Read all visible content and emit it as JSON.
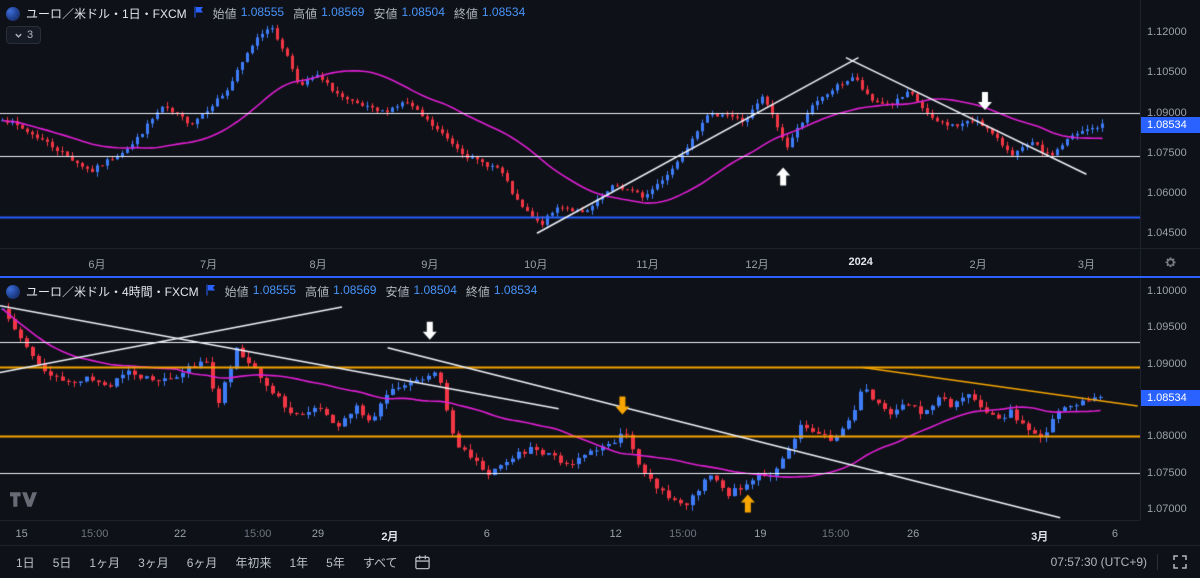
{
  "colors": {
    "background": "#0e1117",
    "up": "#3f7df8",
    "down": "#f23645",
    "ma": "#e01fd5",
    "level_white": "#f0f3fa",
    "level_orange": "#f7a600",
    "level_blue": "#2962ff",
    "separator": "#2962ff",
    "axis_text": "#9aa0aa",
    "tag_bg": "#2962ff",
    "value_blue": "#4894fa"
  },
  "panes_ui": {
    "indicator_count": "3"
  },
  "toolbar": {
    "ranges": [
      "1日",
      "5日",
      "1ヶ月",
      "3ヶ月",
      "6ヶ月",
      "年初来",
      "1年",
      "5年",
      "すべて"
    ],
    "clock": "07:57:30 (UTC+9)"
  },
  "chart_data": [
    {
      "type": "candlestick",
      "symbol": "ユーロ／米ドル・1日・FXCM",
      "timeframe": "1日",
      "exchange": "FXCM",
      "legend": [
        {
          "label": "始値",
          "value": "1.08555"
        },
        {
          "label": "高値",
          "value": "1.08569"
        },
        {
          "label": "安値",
          "value": "1.08504"
        },
        {
          "label": "終値",
          "value": "1.08534"
        }
      ],
      "last_price": "1.08534",
      "y_range": [
        1.0395,
        1.132
      ],
      "y_ticks": [
        1.12,
        1.105,
        1.09,
        1.075,
        1.06,
        1.045
      ],
      "x_ticks": [
        {
          "t": "6月",
          "x": 0.085
        },
        {
          "t": "7月",
          "x": 0.183
        },
        {
          "t": "8月",
          "x": 0.279
        },
        {
          "t": "9月",
          "x": 0.377
        },
        {
          "t": "10月",
          "x": 0.47
        },
        {
          "t": "11月",
          "x": 0.568
        },
        {
          "t": "12月",
          "x": 0.664
        },
        {
          "t": "2024",
          "x": 0.755,
          "s": "major"
        },
        {
          "t": "2月",
          "x": 0.858
        },
        {
          "t": "3月",
          "x": 0.953
        }
      ],
      "bars": 221,
      "bar_spacing": 5,
      "body_width": 3,
      "seed": 7,
      "close_noise": 0.0009,
      "wick_extra": 0.0018,
      "ma_period": 28,
      "close_path": [
        [
          0,
          1.088
        ],
        [
          0.036,
          1.08
        ],
        [
          0.081,
          1.068
        ],
        [
          0.118,
          1.078
        ],
        [
          0.145,
          1.092
        ],
        [
          0.172,
          1.086
        ],
        [
          0.204,
          1.098
        ],
        [
          0.231,
          1.118
        ],
        [
          0.243,
          1.1225
        ],
        [
          0.258,
          1.112
        ],
        [
          0.271,
          1.0995
        ],
        [
          0.285,
          1.104
        ],
        [
          0.312,
          1.0945
        ],
        [
          0.344,
          1.09
        ],
        [
          0.367,
          1.094
        ],
        [
          0.394,
          1.084
        ],
        [
          0.425,
          1.073
        ],
        [
          0.452,
          1.069
        ],
        [
          0.469,
          1.056
        ],
        [
          0.489,
          1.048
        ],
        [
          0.507,
          1.0555
        ],
        [
          0.529,
          1.052
        ],
        [
          0.557,
          1.063
        ],
        [
          0.584,
          1.0585
        ],
        [
          0.611,
          1.07
        ],
        [
          0.638,
          1.088
        ],
        [
          0.656,
          1.09
        ],
        [
          0.674,
          1.0865
        ],
        [
          0.692,
          1.096
        ],
        [
          0.713,
          1.077
        ],
        [
          0.733,
          1.091
        ],
        [
          0.756,
          1.099
        ],
        [
          0.774,
          1.1035
        ],
        [
          0.789,
          1.0945
        ],
        [
          0.808,
          1.093
        ],
        [
          0.825,
          1.0975
        ],
        [
          0.846,
          1.087
        ],
        [
          0.867,
          1.085
        ],
        [
          0.887,
          1.0875
        ],
        [
          0.905,
          1.0795
        ],
        [
          0.919,
          1.0745
        ],
        [
          0.937,
          1.0785
        ],
        [
          0.952,
          1.0735
        ],
        [
          0.97,
          1.0805
        ],
        [
          0.986,
          1.0835
        ],
        [
          1,
          1.0853
        ]
      ],
      "levels": [
        {
          "price": 1.09,
          "color": "#f0f3fa",
          "lw": 1
        },
        {
          "price": 1.074,
          "color": "#f0f3fa",
          "lw": 1
        },
        {
          "price": 1.051,
          "color": "#2962ff",
          "lw": 2
        }
      ],
      "trendlines": [
        {
          "x1": 0.471,
          "p1": 1.045,
          "x2": 0.753,
          "p2": 1.1105,
          "color": "#f0f3fa",
          "lw": 1.5
        },
        {
          "x1": 0.742,
          "p1": 1.1105,
          "x2": 0.953,
          "p2": 1.067,
          "color": "#f0f3fa",
          "lw": 1.5
        }
      ],
      "arrows": [
        {
          "x": 0.687,
          "price": 1.0695,
          "dir": "up",
          "color": "#ffffff"
        },
        {
          "x": 0.864,
          "price": 1.091,
          "dir": "down",
          "color": "#ffffff"
        }
      ]
    },
    {
      "type": "candlestick",
      "symbol": "ユーロ／米ドル・4時間・FXCM",
      "timeframe": "4時間",
      "exchange": "FXCM",
      "legend": [
        {
          "label": "始値",
          "value": "1.08555"
        },
        {
          "label": "高値",
          "value": "1.08569"
        },
        {
          "label": "安値",
          "value": "1.08504"
        },
        {
          "label": "終値",
          "value": "1.08534"
        }
      ],
      "last_price": "1.08534",
      "y_range": [
        1.0685,
        1.1018
      ],
      "y_ticks": [
        1.1,
        1.095,
        1.09,
        1.085,
        1.08,
        1.075,
        1.07
      ],
      "x_ticks": [
        {
          "t": "15",
          "x": 0.019
        },
        {
          "t": "15:00",
          "x": 0.083,
          "s": "minor"
        },
        {
          "t": "22",
          "x": 0.158
        },
        {
          "t": "15:00",
          "x": 0.226,
          "s": "minor"
        },
        {
          "t": "29",
          "x": 0.279
        },
        {
          "t": "2月",
          "x": 0.342,
          "s": "major"
        },
        {
          "t": "6",
          "x": 0.427
        },
        {
          "t": "12",
          "x": 0.54
        },
        {
          "t": "15:00",
          "x": 0.599,
          "s": "minor"
        },
        {
          "t": "19",
          "x": 0.667
        },
        {
          "t": "15:00",
          "x": 0.733,
          "s": "minor"
        },
        {
          "t": "26",
          "x": 0.801
        },
        {
          "t": "3月",
          "x": 0.912,
          "s": "major"
        },
        {
          "t": "6",
          "x": 0.978
        }
      ],
      "bars": 184,
      "bar_spacing": 6,
      "body_width": 4,
      "seed": 13,
      "close_noise": 0.00045,
      "wick_extra": 0.0008,
      "ma_period": 30,
      "close_path": [
        [
          0,
          1.0975
        ],
        [
          0.016,
          1.094
        ],
        [
          0.041,
          1.0885
        ],
        [
          0.059,
          1.0872
        ],
        [
          0.077,
          1.0882
        ],
        [
          0.095,
          1.0868
        ],
        [
          0.113,
          1.089
        ],
        [
          0.136,
          1.0878
        ],
        [
          0.158,
          1.0885
        ],
        [
          0.186,
          1.0905
        ],
        [
          0.195,
          1.084
        ],
        [
          0.213,
          1.0922
        ],
        [
          0.231,
          1.0892
        ],
        [
          0.249,
          1.0855
        ],
        [
          0.267,
          1.0828
        ],
        [
          0.285,
          1.0842
        ],
        [
          0.303,
          1.0812
        ],
        [
          0.321,
          1.0842
        ],
        [
          0.335,
          1.0822
        ],
        [
          0.348,
          1.0852
        ],
        [
          0.362,
          1.087
        ],
        [
          0.38,
          1.0875
        ],
        [
          0.396,
          1.0888
        ],
        [
          0.412,
          1.0788
        ],
        [
          0.427,
          1.0772
        ],
        [
          0.443,
          1.0748
        ],
        [
          0.462,
          1.0772
        ],
        [
          0.48,
          1.0782
        ],
        [
          0.498,
          1.0773
        ],
        [
          0.516,
          1.0762
        ],
        [
          0.536,
          1.0782
        ],
        [
          0.554,
          1.0788
        ],
        [
          0.566,
          1.0805
        ],
        [
          0.581,
          1.076
        ],
        [
          0.595,
          1.0732
        ],
        [
          0.608,
          1.0712
        ],
        [
          0.623,
          1.0702
        ],
        [
          0.635,
          1.0732
        ],
        [
          0.648,
          1.0748
        ],
        [
          0.661,
          1.0722
        ],
        [
          0.675,
          1.0732
        ],
        [
          0.69,
          1.0752
        ],
        [
          0.702,
          1.0744
        ],
        [
          0.717,
          1.0782
        ],
        [
          0.729,
          1.082
        ],
        [
          0.743,
          1.0802
        ],
        [
          0.757,
          1.0796
        ],
        [
          0.77,
          1.0818
        ],
        [
          0.784,
          1.0868
        ],
        [
          0.797,
          1.0842
        ],
        [
          0.811,
          1.0832
        ],
        [
          0.824,
          1.0846
        ],
        [
          0.838,
          1.083
        ],
        [
          0.852,
          1.0852
        ],
        [
          0.865,
          1.0842
        ],
        [
          0.879,
          1.0856
        ],
        [
          0.892,
          1.0842
        ],
        [
          0.906,
          1.0822
        ],
        [
          0.919,
          1.0836
        ],
        [
          0.933,
          1.0806
        ],
        [
          0.947,
          1.08
        ],
        [
          0.96,
          1.083
        ],
        [
          0.974,
          1.0842
        ],
        [
          0.987,
          1.0852
        ],
        [
          1,
          1.0853
        ]
      ],
      "levels": [
        {
          "price": 1.093,
          "color": "#f0f3fa",
          "lw": 1
        },
        {
          "price": 1.0895,
          "color": "#f7a600",
          "lw": 2
        },
        {
          "price": 1.08,
          "color": "#f7a600",
          "lw": 2
        },
        {
          "price": 1.075,
          "color": "#f0f3fa",
          "lw": 1
        }
      ],
      "trendlines": [
        {
          "x1": 0.0,
          "p1": 1.098,
          "x2": 0.49,
          "p2": 1.0838,
          "color": "#f0f3fa",
          "lw": 1.5
        },
        {
          "x1": 0.0,
          "p1": 1.0888,
          "x2": 0.3,
          "p2": 1.0978,
          "color": "#f0f3fa",
          "lw": 1.5
        },
        {
          "x1": 0.34,
          "p1": 1.0922,
          "x2": 0.93,
          "p2": 1.0688,
          "color": "#f0f3fa",
          "lw": 1.5
        },
        {
          "x1": 0.757,
          "p1": 1.0895,
          "x2": 0.998,
          "p2": 1.0842,
          "color": "#f7a600",
          "lw": 1.5
        }
      ],
      "arrows": [
        {
          "x": 0.377,
          "price": 1.0933,
          "dir": "down",
          "color": "#ffffff"
        },
        {
          "x": 0.546,
          "price": 1.083,
          "dir": "down",
          "color": "#f7a600"
        },
        {
          "x": 0.656,
          "price": 1.072,
          "dir": "up",
          "color": "#f7a600"
        }
      ]
    }
  ]
}
